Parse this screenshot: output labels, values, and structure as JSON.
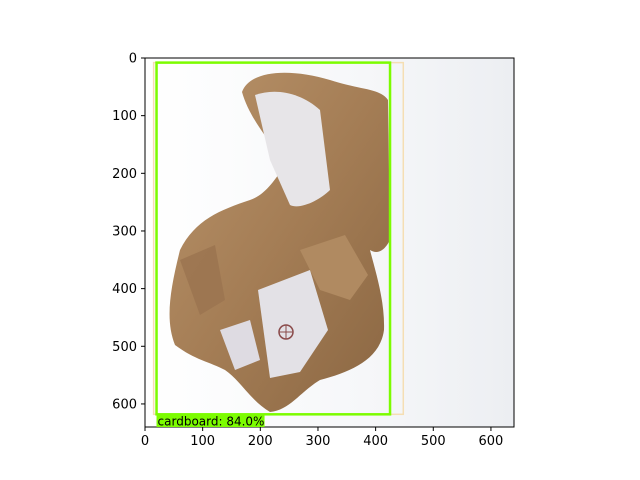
{
  "figure": {
    "image_description_hidden": false,
    "image_extent": {
      "width": 640,
      "height": 640
    },
    "x_ticks": [
      0,
      100,
      200,
      300,
      400,
      500,
      600
    ],
    "y_ticks": [
      0,
      100,
      200,
      300,
      400,
      500,
      600
    ]
  },
  "detections": [
    {
      "label": "cardboard: 84.0%",
      "color": "#7cfc00",
      "box": {
        "x0": 20,
        "y0": 8,
        "x1": 425,
        "y1": 618
      }
    }
  ],
  "secondary_box": {
    "color": "#f5deb3",
    "box": {
      "x0": 15,
      "y0": 8,
      "x1": 448,
      "y1": 618
    }
  }
}
